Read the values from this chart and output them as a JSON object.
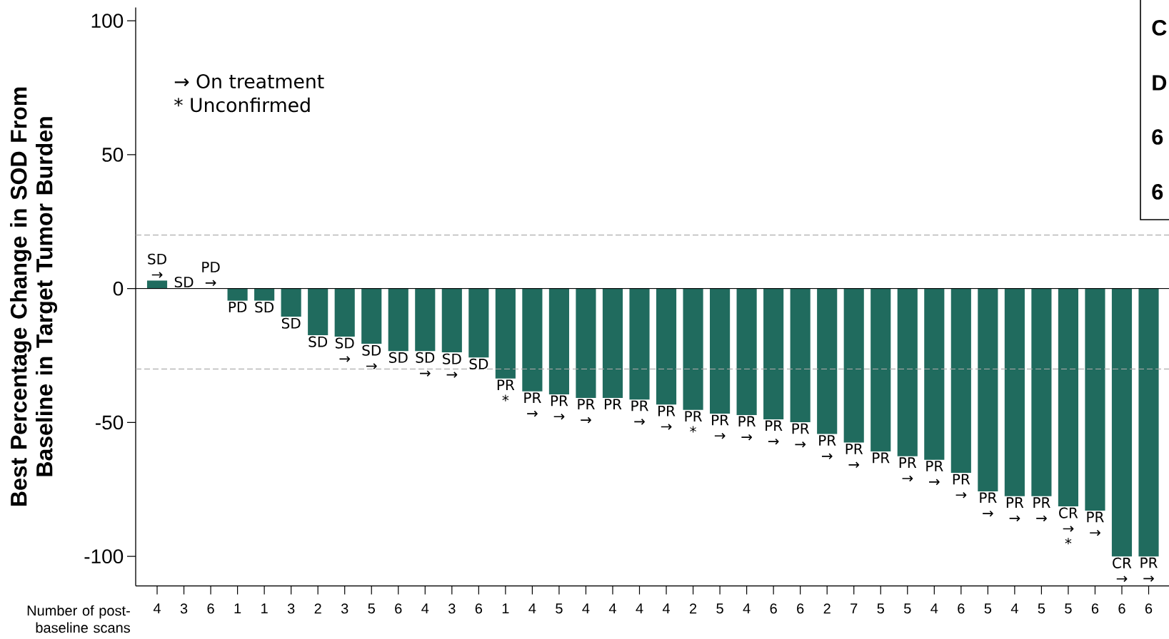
{
  "chart_data": {
    "type": "bar",
    "ylabel": "Best Percentage Change in SOD From Baseline in Target Tumor Burden",
    "xlabel": "Number of post-baseline scans",
    "categories": [
      "4",
      "3",
      "6",
      "1",
      "1",
      "3",
      "2",
      "3",
      "5",
      "6",
      "4",
      "3",
      "6",
      "1",
      "4",
      "5",
      "4",
      "4",
      "4",
      "4",
      "2",
      "5",
      "4",
      "6",
      "6",
      "2",
      "7",
      "5",
      "5",
      "4",
      "6",
      "5",
      "4",
      "5",
      "5",
      "6",
      "6",
      "6"
    ],
    "values": [
      3,
      0,
      0,
      -4.5,
      -4.5,
      -10.5,
      -17.4,
      -17.9,
      -20.6,
      -23.3,
      -23.3,
      -23.8,
      -25.7,
      -33.6,
      -38.4,
      -39.5,
      -40.8,
      -40.8,
      -41.4,
      -43.3,
      -45.3,
      -46.7,
      -47.2,
      -48.8,
      -49.9,
      -54.3,
      -57.5,
      -60.8,
      -62.6,
      -63.9,
      -68.8,
      -75.7,
      -77.5,
      -77.5,
      -81.3,
      -82.9,
      -100,
      -100
    ],
    "value_labels": [
      "SD →",
      "SD",
      "PD →",
      "PD",
      "SD",
      "SD",
      "SD",
      "SD →",
      "SD →",
      "SD",
      "SD →",
      "SD →",
      "SD",
      "PR *",
      "PR →",
      "PR →",
      "PR →",
      "PR",
      "PR →",
      "PR →",
      "PR *",
      "PR →",
      "PR →",
      "PR →",
      "PR →",
      "PR →",
      "PR →",
      "PR",
      "PR →",
      "PR →",
      "PR →",
      "PR →",
      "PR →",
      "PR →",
      "CR → *",
      "PR →",
      "CR →",
      "PR →"
    ],
    "color": "#206b5e",
    "ylim": [
      -111,
      105
    ],
    "yticks": [
      -100,
      -50,
      0,
      50,
      100
    ],
    "ref_lines": [
      {
        "axis": "y",
        "value": 20,
        "line_style": "dashed",
        "color": "#a6a6a6"
      },
      {
        "axis": "y",
        "value": -30,
        "line_style": "dashed",
        "color": "#a6a6a6"
      },
      {
        "axis": "y",
        "value": 0,
        "line_style": "solid",
        "color": "#000000"
      }
    ],
    "annotations": [
      "→ On treatment",
      "* Unconfirmed",
      "C",
      "D",
      "6",
      "6"
    ]
  }
}
